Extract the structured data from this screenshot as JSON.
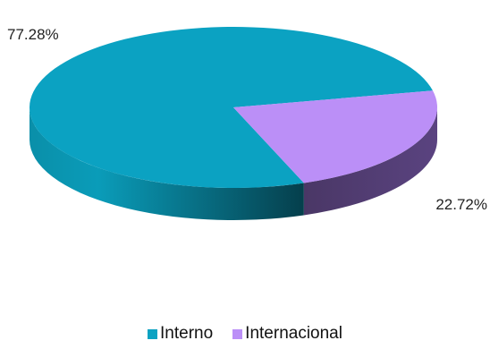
{
  "chart_data": {
    "type": "pie",
    "style": "3d",
    "legend_position": "bottom",
    "slices": [
      {
        "name": "Interno",
        "value": 77.28,
        "label": "77.28%",
        "color": "#0ba2c2",
        "side_color": "#06768f"
      },
      {
        "name": "Internacional",
        "value": 22.72,
        "label": "22.72%",
        "color": "#bb8ff7",
        "side_color": "#4e3a6c"
      }
    ]
  }
}
